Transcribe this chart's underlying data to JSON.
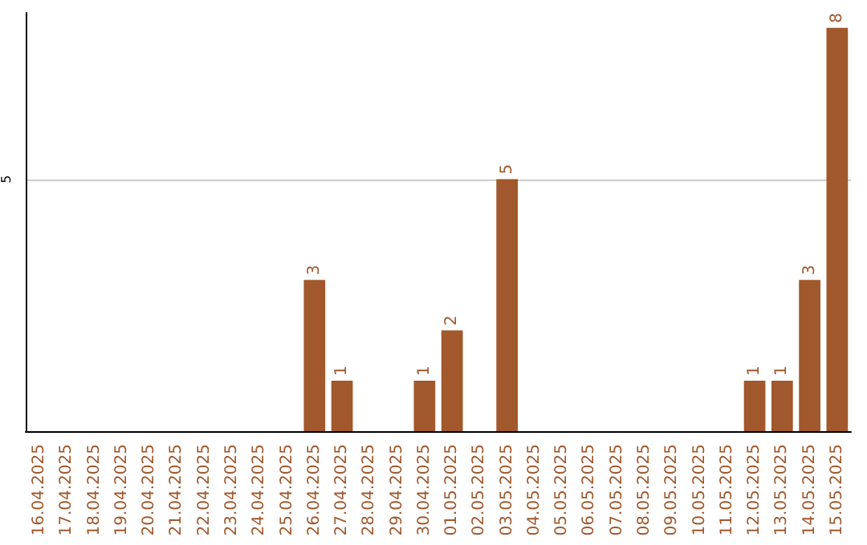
{
  "chart_data": {
    "type": "bar",
    "categories": [
      "16.04.2025",
      "17.04.2025",
      "18.04.2025",
      "19.04.2025",
      "20.04.2025",
      "21.04.2025",
      "22.04.2025",
      "23.04.2025",
      "24.04.2025",
      "25.04.2025",
      "26.04.2025",
      "27.04.2025",
      "28.04.2025",
      "29.04.2025",
      "30.04.2025",
      "01.05.2025",
      "02.05.2025",
      "03.05.2025",
      "04.05.2025",
      "05.05.2025",
      "06.05.2025",
      "07.05.2025",
      "08.05.2025",
      "09.05.2025",
      "10.05.2025",
      "11.05.2025",
      "12.05.2025",
      "13.05.2025",
      "14.05.2025",
      "15.05.2025"
    ],
    "values": [
      0,
      0,
      0,
      0,
      0,
      0,
      0,
      0,
      0,
      0,
      3,
      1,
      0,
      0,
      1,
      2,
      0,
      5,
      0,
      0,
      0,
      0,
      0,
      0,
      0,
      0,
      1,
      1,
      3,
      8
    ],
    "value_labels": [
      null,
      null,
      null,
      null,
      null,
      null,
      null,
      null,
      null,
      null,
      "3",
      "1",
      null,
      null,
      "1",
      "2",
      null,
      "5",
      null,
      null,
      null,
      null,
      null,
      null,
      null,
      null,
      "1",
      "1",
      "3",
      "8"
    ],
    "color": "#a0582c",
    "ylim": [
      0,
      8.3
    ],
    "yticks": [
      5
    ],
    "grid": "y"
  }
}
